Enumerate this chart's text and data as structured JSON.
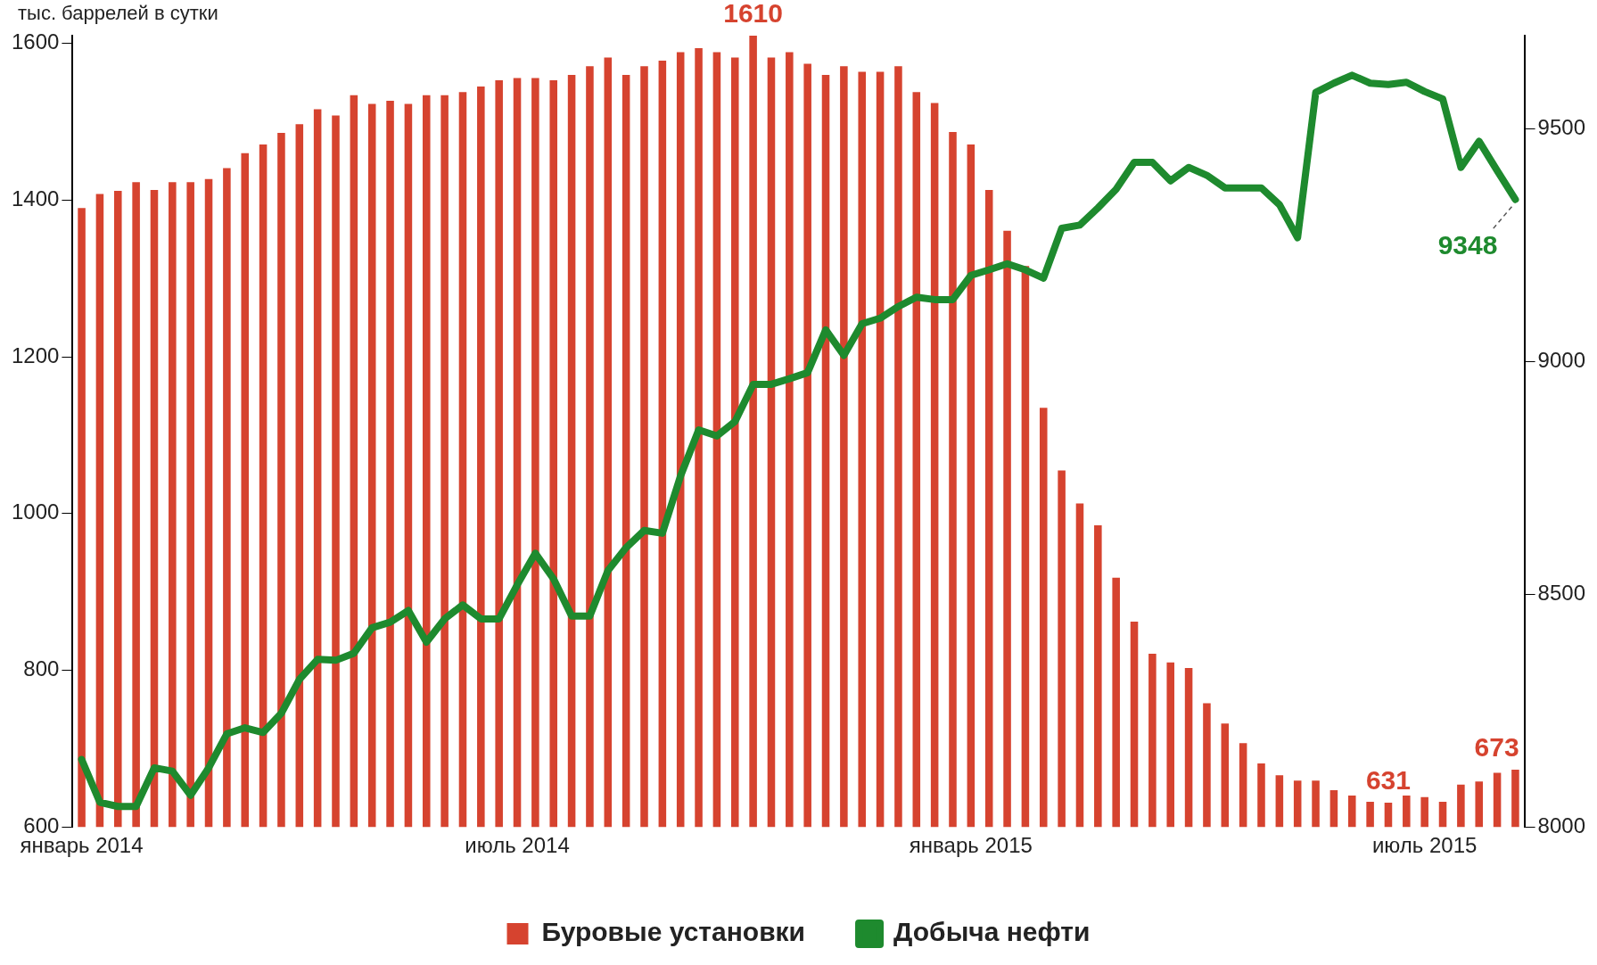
{
  "chart_data": {
    "type": "bar",
    "annotations": [
      "тыс. баррелей в сутки"
    ],
    "categories": [
      "январь 2014",
      null,
      null,
      null,
      null,
      null,
      null,
      null,
      null,
      null,
      null,
      null,
      null,
      null,
      null,
      null,
      null,
      null,
      null,
      null,
      null,
      null,
      null,
      null,
      "июль 2014",
      null,
      null,
      null,
      null,
      null,
      null,
      null,
      null,
      null,
      null,
      null,
      null,
      null,
      null,
      null,
      null,
      null,
      null,
      null,
      null,
      null,
      null,
      null,
      null,
      "январь 2015",
      null,
      null,
      null,
      null,
      null,
      null,
      null,
      null,
      null,
      null,
      null,
      null,
      null,
      null,
      null,
      null,
      null,
      null,
      null,
      null,
      null,
      null,
      null,
      null,
      "июль 2015",
      null,
      null,
      null,
      null,
      null
    ],
    "series": [
      {
        "name": "Буровые установки",
        "type": "bar",
        "color": "#d6432f",
        "values": [
          1390,
          1408,
          1412,
          1423,
          1413,
          1423,
          1423,
          1427,
          1441,
          1460,
          1471,
          1486,
          1497,
          1516,
          1508,
          1534,
          1523,
          1527,
          1523,
          1534,
          1534,
          1538,
          1545,
          1553,
          1556,
          1556,
          1553,
          1560,
          1571,
          1582,
          1560,
          1571,
          1578,
          1589,
          1594,
          1589,
          1582,
          1610,
          1582,
          1589,
          1574,
          1560,
          1571,
          1564,
          1564,
          1571,
          1538,
          1524,
          1487,
          1471,
          1413,
          1361,
          1316,
          1135,
          1055,
          1013,
          985,
          918,
          862,
          821,
          810,
          803,
          758,
          732,
          707,
          681,
          666,
          659,
          659,
          647,
          640,
          632,
          631,
          640,
          638,
          632,
          654,
          658,
          669,
          673
        ],
        "value_labels": [
          null,
          null,
          null,
          null,
          null,
          null,
          null,
          null,
          null,
          null,
          null,
          null,
          null,
          null,
          null,
          null,
          null,
          null,
          null,
          null,
          null,
          null,
          null,
          null,
          null,
          null,
          null,
          null,
          null,
          null,
          null,
          null,
          null,
          null,
          null,
          null,
          null,
          "1610",
          null,
          null,
          null,
          null,
          null,
          null,
          null,
          null,
          null,
          null,
          null,
          null,
          null,
          null,
          null,
          null,
          null,
          null,
          null,
          null,
          null,
          null,
          null,
          null,
          null,
          null,
          null,
          null,
          null,
          null,
          null,
          null,
          null,
          null,
          "631",
          null,
          null,
          null,
          null,
          null,
          null,
          "673"
        ]
      },
      {
        "name": "Добыча нефти",
        "type": "line",
        "axis": "y2",
        "color": "#1e8a2e",
        "values": [
          8145,
          8053,
          8044,
          8044,
          8127,
          8120,
          8068,
          8127,
          8200,
          8213,
          8203,
          8244,
          8317,
          8360,
          8358,
          8373,
          8428,
          8440,
          8465,
          8397,
          8447,
          8477,
          8447,
          8447,
          8520,
          8588,
          8533,
          8453,
          8453,
          8551,
          8600,
          8637,
          8631,
          8754,
          8853,
          8840,
          8871,
          8951,
          8951,
          8963,
          8976,
          9068,
          9013,
          9081,
          9093,
          9118,
          9138,
          9133,
          9133,
          9185,
          9197,
          9210,
          9197,
          9179,
          9286,
          9293,
          9330,
          9370,
          9428,
          9428,
          9388,
          9417,
          9400,
          9373,
          9373,
          9373,
          9337,
          9266,
          9578,
          9598,
          9615,
          9598,
          9595,
          9600,
          9580,
          9564,
          9417,
          9473,
          9410,
          9348
        ],
        "value_labels": [
          null,
          null,
          null,
          null,
          null,
          null,
          null,
          null,
          null,
          null,
          null,
          null,
          null,
          null,
          null,
          null,
          null,
          null,
          null,
          null,
          null,
          null,
          null,
          null,
          null,
          null,
          null,
          null,
          null,
          null,
          null,
          null,
          null,
          null,
          null,
          null,
          null,
          null,
          null,
          null,
          null,
          null,
          null,
          null,
          null,
          null,
          null,
          null,
          null,
          null,
          null,
          null,
          null,
          null,
          null,
          null,
          null,
          null,
          null,
          null,
          null,
          null,
          null,
          null,
          null,
          null,
          null,
          null,
          null,
          null,
          null,
          null,
          null,
          null,
          null,
          null,
          null,
          null,
          null,
          "9348"
        ]
      }
    ],
    "ylim": [
      600,
      1610
    ],
    "yticks": [
      600,
      800,
      1000,
      1200,
      1400,
      1600
    ],
    "y2lim": [
      8000,
      9700
    ],
    "y2ticks": [
      8000,
      8500,
      9000,
      9500
    ],
    "grid": false,
    "legend": "bottom"
  }
}
